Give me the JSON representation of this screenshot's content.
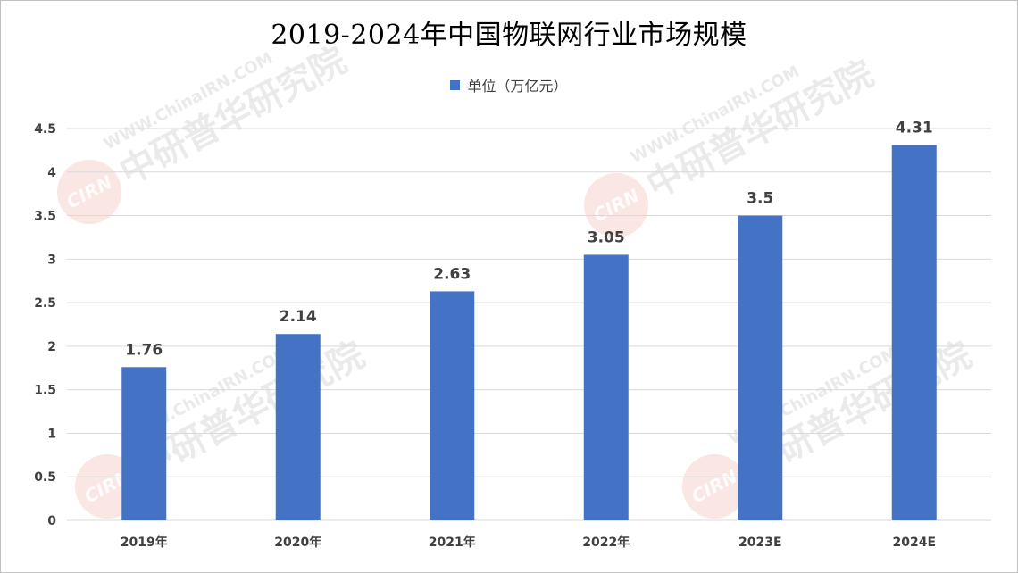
{
  "chart_data": {
    "type": "bar",
    "title": "2019-2024年中国物联网行业市场规模",
    "categories": [
      "2019年",
      "2020年",
      "2021年",
      "2022年",
      "2023E",
      "2024E"
    ],
    "series": [
      {
        "name": "单位（万亿元）",
        "values": [
          1.76,
          2.14,
          2.63,
          3.05,
          3.5,
          4.31
        ],
        "data_labels": [
          "1.76",
          "2.14",
          "2.63",
          "3.05",
          "3.5",
          "4.31"
        ],
        "color": "#4472c4"
      }
    ],
    "ylim": [
      0,
      4.5
    ],
    "yticks": [
      0,
      0.5,
      1,
      1.5,
      2,
      2.5,
      3,
      3.5,
      4,
      4.5
    ],
    "ytick_labels": [
      "0",
      "0.5",
      "1",
      "1.5",
      "2",
      "2.5",
      "3",
      "3.5",
      "4",
      "4.5"
    ],
    "grid": true,
    "legend_position": "top"
  },
  "watermark": {
    "url_text": "WWW.ChinaIRN.COM",
    "org_text": "中研普华研究院",
    "logo_text": "CIRN"
  },
  "colors": {
    "bar": "#4472c4",
    "grid": "#d9d9d9",
    "text": "#404040"
  }
}
